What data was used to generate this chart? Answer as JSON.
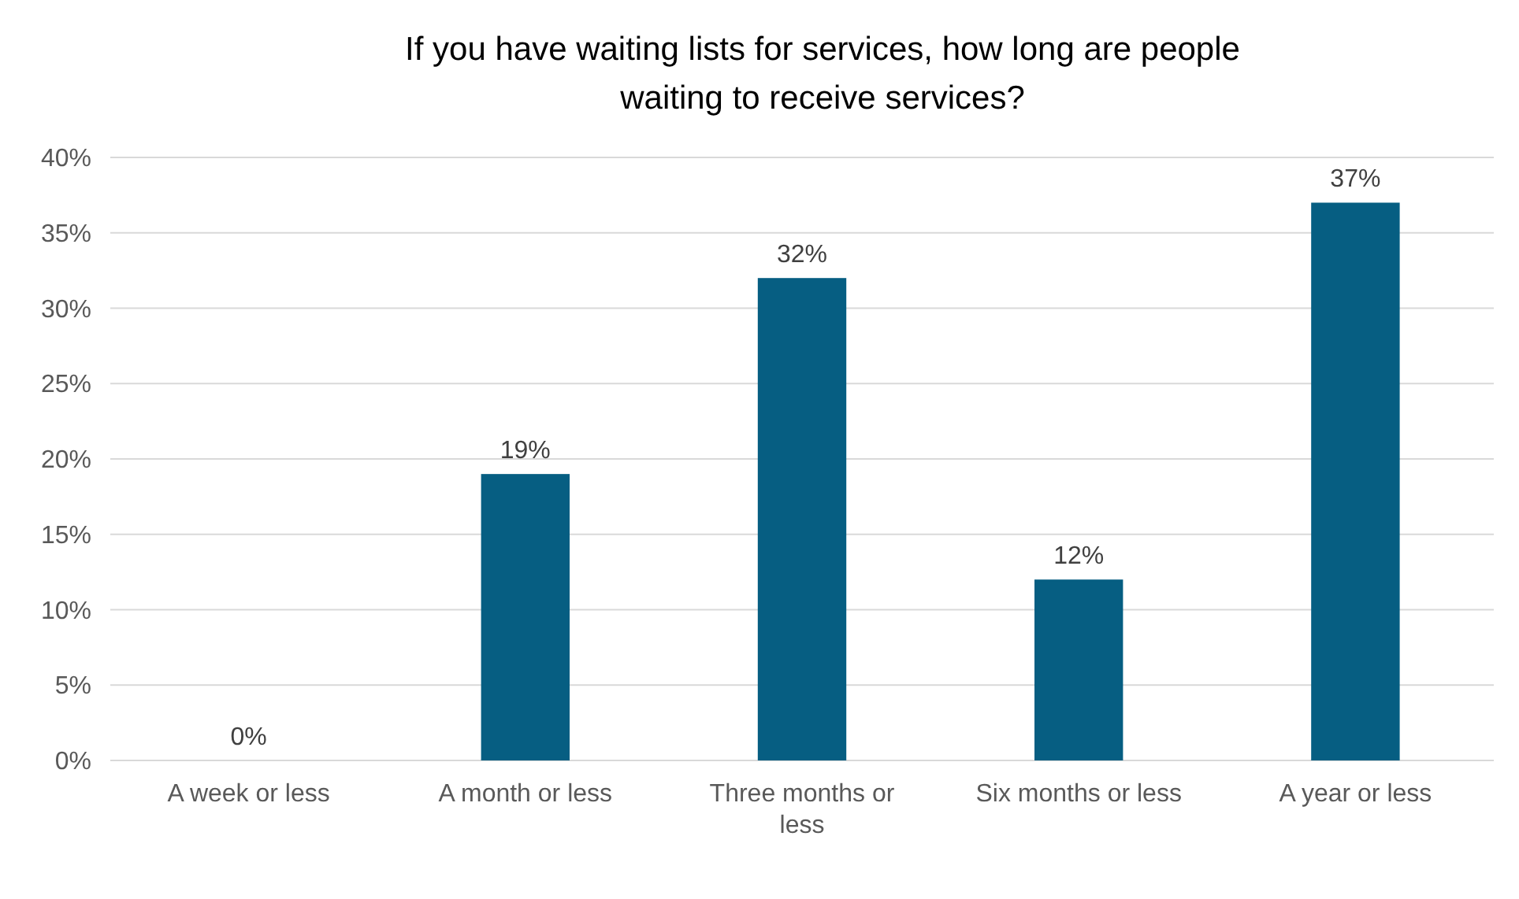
{
  "chart_data": {
    "type": "bar",
    "title": "If you have waiting lists for services, how long are people waiting to receive services?",
    "categories": [
      "A week or less",
      "A month or less",
      "Three months or less",
      "Six months or less",
      "A year or less"
    ],
    "values": [
      0,
      19,
      32,
      12,
      37
    ],
    "value_labels": [
      "0%",
      "19%",
      "32%",
      "12%",
      "37%"
    ],
    "color": "#065e82",
    "ylim": [
      0,
      40
    ],
    "yticks": [
      {
        "value": 0,
        "label": "0%"
      },
      {
        "value": 5,
        "label": "5%"
      },
      {
        "value": 10,
        "label": "10%"
      },
      {
        "value": 15,
        "label": "15%"
      },
      {
        "value": 20,
        "label": "20%"
      },
      {
        "value": 25,
        "label": "25%"
      },
      {
        "value": 30,
        "label": "30%"
      },
      {
        "value": 35,
        "label": "35%"
      },
      {
        "value": 40,
        "label": "40%"
      }
    ],
    "grid": "y"
  }
}
